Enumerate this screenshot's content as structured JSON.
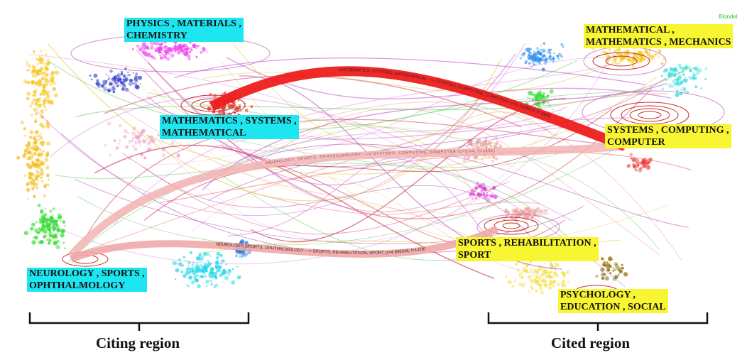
{
  "watermark": "Blondel",
  "colors": {
    "citing_label_bg": "#1ee6f0",
    "cited_label_bg": "#f8f532",
    "main_arc": "#ee1c1c",
    "second_arc": "#f2b3b3"
  },
  "citing_region": {
    "title": "Citing region",
    "clusters": [
      {
        "id": "physics",
        "lines": [
          "PHYSICS , MATERIALS ,",
          "CHEMISTRY"
        ]
      },
      {
        "id": "mathematics",
        "lines": [
          "MATHEMATICS , SYSTEMS ,",
          "MATHEMATICAL"
        ]
      },
      {
        "id": "neurology",
        "lines": [
          "NEUROLOGY , SPORTS ,",
          "OPHTHALMOLOGY"
        ]
      }
    ]
  },
  "cited_region": {
    "title": "Cited region",
    "clusters": [
      {
        "id": "mathematical",
        "lines": [
          "MATHEMATICAL ,",
          "MATHEMATICS , MECHANICS"
        ]
      },
      {
        "id": "systems",
        "lines": [
          "SYSTEMS , COMPUTING ,",
          "COMPUTER"
        ]
      },
      {
        "id": "sports",
        "lines": [
          "SPORTS , REHABILITATION ,",
          "SPORT"
        ]
      },
      {
        "id": "psychology",
        "lines": [
          "PSYCHOLOGY ,",
          "EDUCATION , SOCIAL"
        ]
      }
    ]
  },
  "arc_labels": {
    "main": "MATHEMATICS, SYSTEMS, MATHEMATICAL ---> SYSTEMS, COMPUTING, COMPUTER (z=6.3166074, f=1889)",
    "secondary": "NEUROLOGY, SPORTS, OPHTHALMOLOGY ---> SYSTEMS, COMPUTING, COMPUTER (z=5.44, f=1431)",
    "third": "NEUROLOGY, SPORTS, OPHTHALMOLOGY ---> SPORTS, REHABILITATION, SPORT (z=4.848348, f=1429)"
  }
}
